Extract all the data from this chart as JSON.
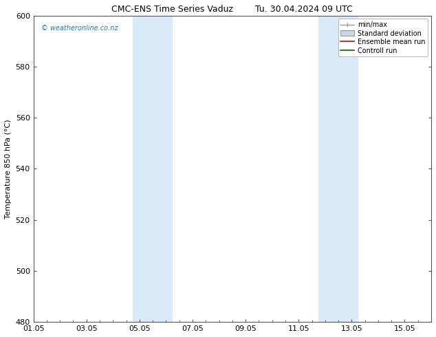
{
  "title_left": "CMC-ENS Time Series Vaduz",
  "title_right": "Tu. 30.04.2024 09 UTC",
  "ylabel": "Temperature 850 hPa (°C)",
  "ylim": [
    480,
    600
  ],
  "yticks": [
    480,
    500,
    520,
    540,
    560,
    580,
    600
  ],
  "xtick_labels": [
    "01.05",
    "03.05",
    "05.05",
    "07.05",
    "09.05",
    "11.05",
    "13.05",
    "15.05"
  ],
  "xtick_positions": [
    0,
    2,
    4,
    6,
    8,
    10,
    12,
    14
  ],
  "xlim": [
    0,
    15
  ],
  "shaded_bands": [
    {
      "x_start": 3.75,
      "x_end": 5.25,
      "color": "#daeaf8"
    },
    {
      "x_start": 10.75,
      "x_end": 12.25,
      "color": "#daeaf8"
    }
  ],
  "watermark_text": "© weatheronline.co.nz",
  "watermark_color": "#1a7abf",
  "legend_labels": [
    "min/max",
    "Standard deviation",
    "Ensemble mean run",
    "Controll run"
  ],
  "minmax_color": "#999999",
  "std_facecolor": "#c8d8e8",
  "std_edgecolor": "#999999",
  "ensemble_color": "#cc0000",
  "control_color": "#006600",
  "background_color": "#ffffff",
  "plot_bg_color": "#ffffff",
  "tick_label_fontsize": 8,
  "axis_label_fontsize": 8,
  "title_fontsize": 9,
  "legend_fontsize": 7,
  "watermark_fontsize": 7
}
